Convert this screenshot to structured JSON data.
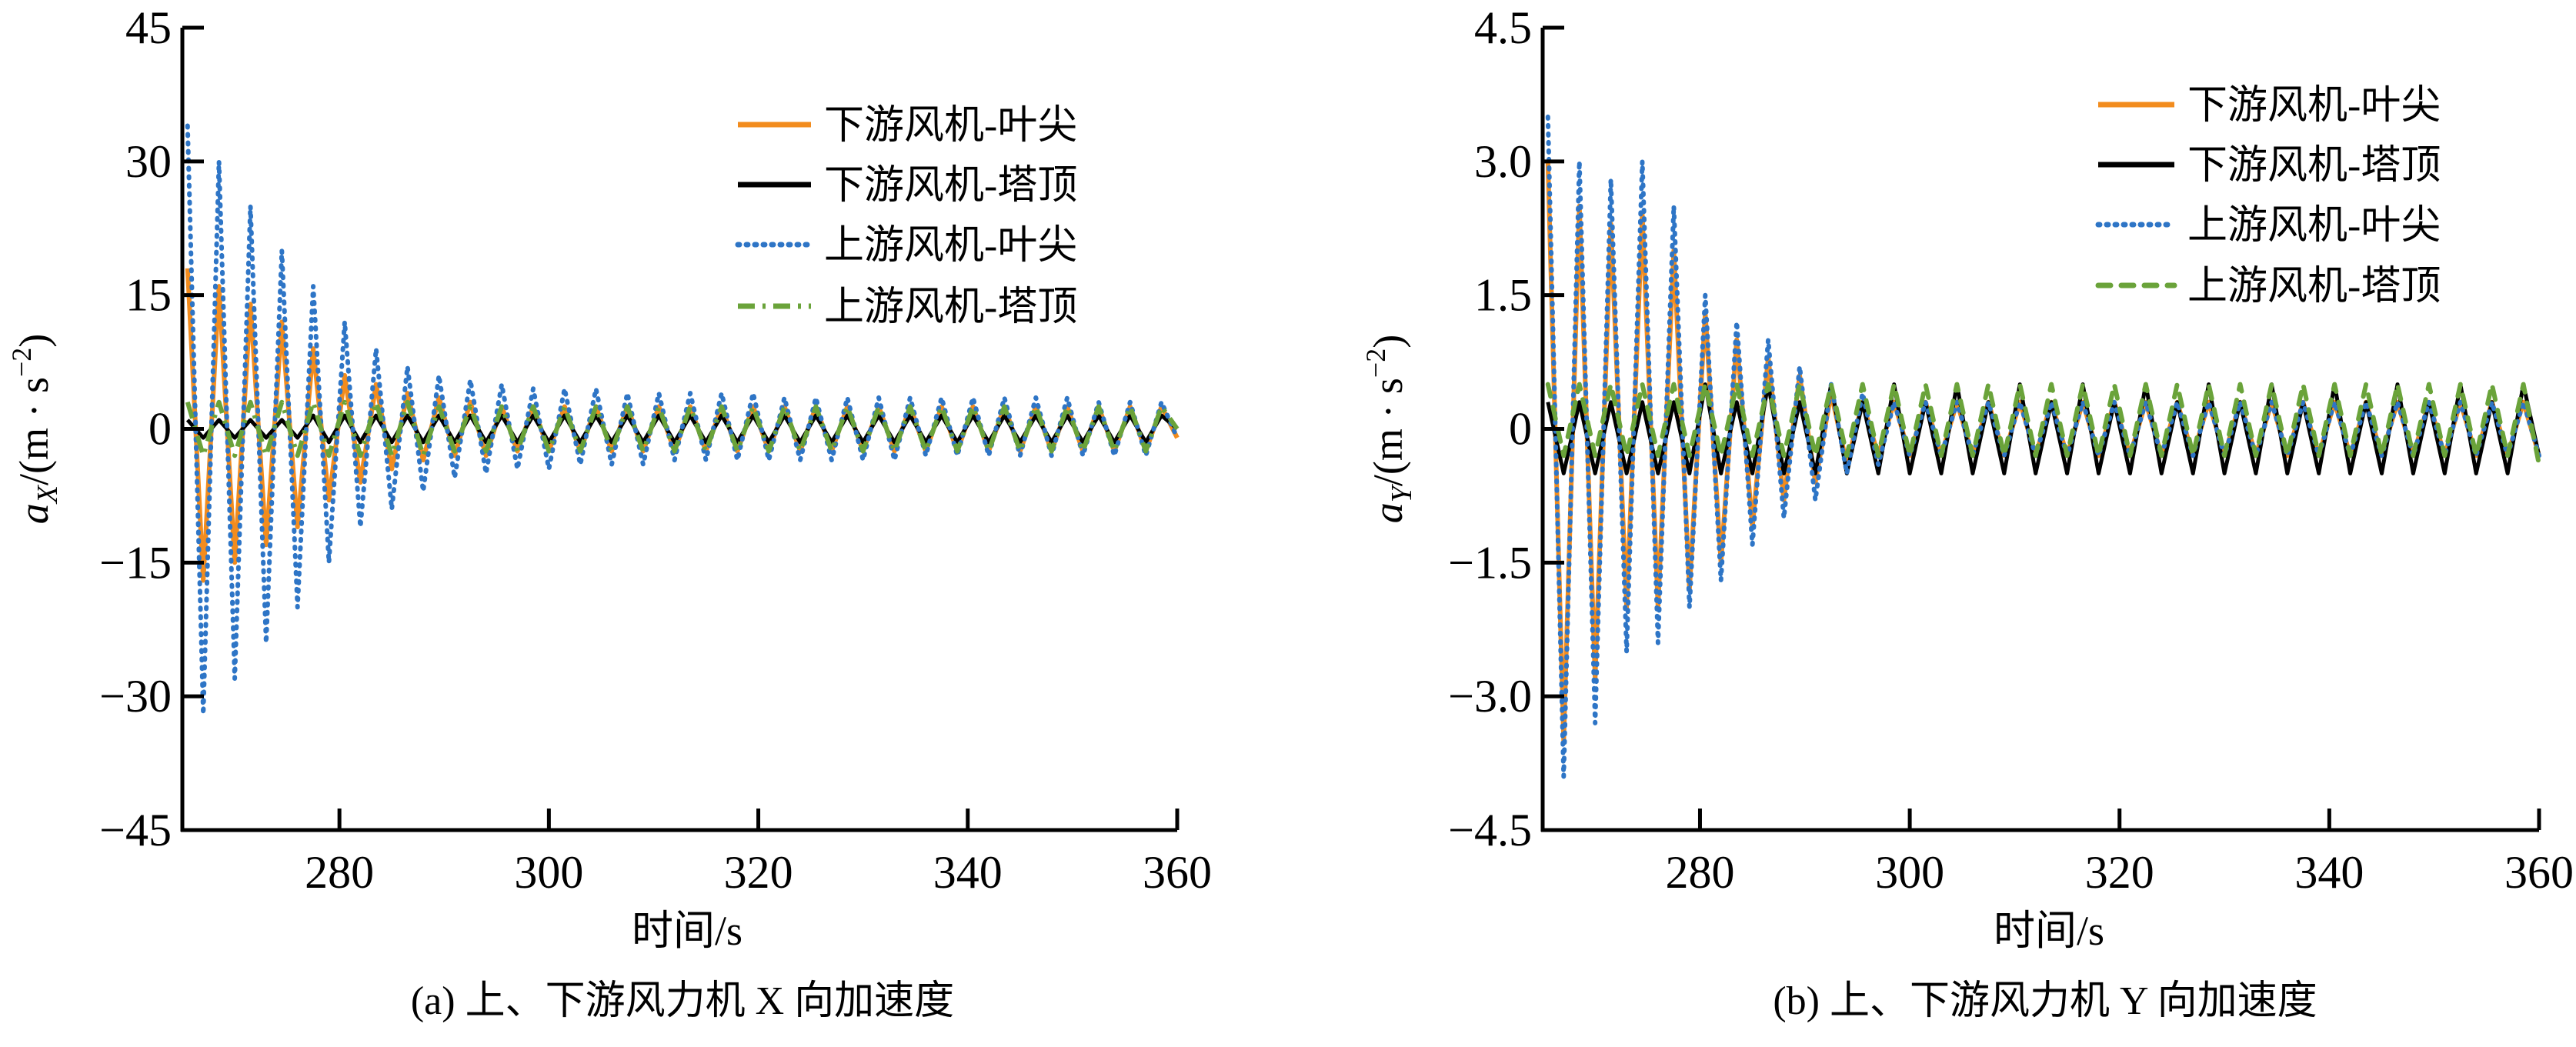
{
  "chart_data": [
    {
      "type": "line",
      "caption": "(a)  上、下游风力机 X 向加速度",
      "xlabel": "时间/s",
      "ylabel": {
        "var": "a",
        "sub": "X",
        "unit": "/(m · s",
        "exp": "−2",
        "close": ")"
      },
      "xlim": [
        265,
        360
      ],
      "ylim": [
        -45,
        45
      ],
      "xticks": [
        "280",
        "300",
        "320",
        "340",
        "360"
      ],
      "xtick_values": [
        280,
        300,
        320,
        340,
        360
      ],
      "yticks": [
        "45",
        "30",
        "15",
        "0",
        "−15",
        "−30",
        "−45"
      ],
      "ytick_values": [
        45,
        30,
        15,
        0,
        -15,
        -30,
        -45
      ],
      "grid": false,
      "legend_position": "top-right",
      "x_start": 265.5,
      "x_step": 1.5,
      "series": [
        {
          "name": "下游风机-叶尖",
          "color": "#F28C1E",
          "style": "solid",
          "values": [
            18,
            -17,
            16,
            -15,
            14,
            -13,
            12,
            -11,
            9,
            -8,
            6,
            -6,
            5,
            -4.5,
            4,
            -3.5,
            3.5,
            -3,
            3,
            -3,
            2.5,
            -2.5,
            2.5,
            -2.5,
            2.5,
            -2.5,
            2.5,
            -2.5,
            2.5,
            -2.5,
            2.5,
            -2.5,
            2.5,
            -2.5,
            2.5,
            -2.5,
            2.5,
            -2.5,
            2.5,
            -2.5,
            2.5,
            -2.5,
            2.5,
            -2.5,
            2.5,
            -2.5,
            2.5,
            -2.5,
            2.5,
            -2.5,
            2.5,
            -2.5,
            2.5,
            -2.5,
            2.5,
            -2.5,
            2.5,
            -2.5,
            2.5,
            -2.5,
            2.5,
            -2.5,
            2.5,
            -1
          ]
        },
        {
          "name": "下游风机-塔顶",
          "color": "#000000",
          "style": "solid",
          "values": [
            1,
            -1,
            1,
            -1,
            1,
            -1,
            1,
            -1,
            1.5,
            -1.5,
            1.5,
            -1.5,
            1.5,
            -1.5,
            1.5,
            -1.5,
            1.5,
            -1.5,
            1.5,
            -1.5,
            1.5,
            -1.5,
            1.5,
            -1.5,
            1.5,
            -1.5,
            1.5,
            -1.5,
            1.5,
            -1.5,
            1.5,
            -1.5,
            1.5,
            -1.5,
            1.5,
            -1.5,
            1.5,
            -1.5,
            1.5,
            -1.5,
            1.5,
            -1.5,
            1.5,
            -1.5,
            1.5,
            -1.5,
            1.5,
            -1.5,
            1.5,
            -1.5,
            1.5,
            -1.5,
            1.5,
            -1.5,
            1.5,
            -1.5,
            1.5,
            -1.5,
            1.5,
            -1.5,
            1.5,
            -1.5,
            1.5,
            0
          ]
        },
        {
          "name": "上游风机-叶尖",
          "color": "#2E75C6",
          "style": "dotted",
          "values": [
            34,
            -32,
            30,
            -28,
            25,
            -24,
            20,
            -20,
            16,
            -15,
            12,
            -11,
            9,
            -9,
            7,
            -7,
            6,
            -5.5,
            5.5,
            -5,
            5,
            -4.5,
            4.5,
            -4.5,
            4.5,
            -4,
            4.5,
            -4,
            4,
            -4,
            4,
            -3.5,
            4,
            -3.5,
            4,
            -3.5,
            4,
            -3.5,
            3.5,
            -3.5,
            3.5,
            -3.5,
            3.5,
            -3.5,
            3.5,
            -3.5,
            3.5,
            -3,
            3.5,
            -3,
            3.5,
            -3,
            3.5,
            -3,
            3.5,
            -3,
            3.5,
            -3,
            3,
            -3,
            3,
            -3,
            3,
            -1
          ]
        },
        {
          "name": "上游风机-塔顶",
          "color": "#6AA33A",
          "style": "dashdot",
          "values": [
            3,
            -3,
            3,
            -3,
            3,
            -3,
            3,
            -3,
            3,
            -3,
            3,
            -3,
            3,
            -3,
            3,
            -3,
            2.5,
            -2.5,
            2.5,
            -2.5,
            2.5,
            -2.5,
            2.5,
            -2.5,
            2.5,
            -2.5,
            2.5,
            -2.5,
            2.5,
            -2.5,
            2.5,
            -2.5,
            2.5,
            -2.5,
            2.5,
            -2.5,
            2.5,
            -2.5,
            2.5,
            -2.5,
            2.5,
            -2.5,
            2.5,
            -2.5,
            2.5,
            -2.5,
            2.5,
            -2.5,
            2.5,
            -2.5,
            2.5,
            -2.5,
            2.5,
            -2.5,
            2.5,
            -2.5,
            2.5,
            -2.5,
            2.5,
            -2.5,
            2.5,
            -2.5,
            2.5,
            0
          ]
        }
      ]
    },
    {
      "type": "line",
      "caption": "(b)  上、下游风力机 Y 向加速度",
      "xlabel": "时间/s",
      "ylabel": {
        "var": "a",
        "sub": "Y",
        "unit": "/(m · s",
        "exp": "−2",
        "close": ")"
      },
      "xlim": [
        265,
        360
      ],
      "ylim": [
        -4.5,
        4.5
      ],
      "xticks": [
        "280",
        "300",
        "320",
        "340",
        "360"
      ],
      "xtick_values": [
        280,
        300,
        320,
        340,
        360
      ],
      "yticks": [
        "4.5",
        "3.0",
        "1.5",
        "0",
        "−1.5",
        "−3.0",
        "−4.5"
      ],
      "ytick_values": [
        4.5,
        3,
        1.5,
        0,
        -1.5,
        -3,
        -4.5
      ],
      "grid": false,
      "legend_position": "top-right",
      "x_start": 265.5,
      "x_step": 1.5,
      "series": [
        {
          "name": "下游风机-叶尖",
          "color": "#F28C1E",
          "style": "solid",
          "values": [
            3,
            -3.5,
            2.5,
            -2.8,
            2.3,
            -2,
            2.4,
            -2,
            2,
            -1.8,
            1.3,
            -1.5,
            1,
            -1.1,
            0.8,
            -0.8,
            0.6,
            -0.6,
            0.4,
            -0.4,
            0.3,
            -0.3,
            0.3,
            -0.3,
            0.3,
            -0.3,
            0.3,
            -0.3,
            0.3,
            -0.3,
            0.3,
            -0.3,
            0.3,
            -0.3,
            0.3,
            -0.3,
            0.3,
            -0.3,
            0.3,
            -0.3,
            0.3,
            -0.3,
            0.3,
            -0.3,
            0.3,
            -0.3,
            0.3,
            -0.3,
            0.3,
            -0.3,
            0.3,
            -0.3,
            0.3,
            -0.3,
            0.3,
            -0.3,
            0.3,
            -0.3,
            0.3,
            -0.3,
            0.3,
            -0.3,
            0.3,
            -0.3
          ]
        },
        {
          "name": "下游风机-塔顶",
          "color": "#000000",
          "style": "solid",
          "values": [
            0.3,
            -0.5,
            0.3,
            -0.5,
            0.3,
            -0.5,
            0.3,
            -0.5,
            0.3,
            -0.5,
            0.5,
            -0.5,
            0.3,
            -0.5,
            0.5,
            -0.5,
            0.3,
            -0.5,
            0.5,
            -0.5,
            0.3,
            -0.5,
            0.5,
            -0.5,
            0.3,
            -0.5,
            0.5,
            -0.5,
            0.3,
            -0.5,
            0.5,
            -0.5,
            0.3,
            -0.5,
            0.5,
            -0.5,
            0.3,
            -0.5,
            0.5,
            -0.5,
            0.3,
            -0.5,
            0.5,
            -0.5,
            0.3,
            -0.5,
            0.5,
            -0.5,
            0.3,
            -0.5,
            0.5,
            -0.5,
            0.3,
            -0.5,
            0.5,
            -0.5,
            0.3,
            -0.5,
            0.5,
            -0.5,
            0.3,
            -0.5,
            0.5,
            -0.3
          ]
        },
        {
          "name": "上游风机-叶尖",
          "color": "#2E75C6",
          "style": "dotted",
          "values": [
            3.5,
            -3.9,
            3,
            -3.3,
            2.8,
            -2.5,
            3,
            -2.4,
            2.5,
            -2,
            1.5,
            -1.7,
            1.2,
            -1.3,
            1,
            -1,
            0.7,
            -0.8,
            0.5,
            -0.5,
            0.4,
            -0.4,
            0.3,
            -0.3,
            0.3,
            -0.3,
            0.3,
            -0.3,
            0.3,
            -0.3,
            0.3,
            -0.3,
            0.3,
            -0.3,
            0.3,
            -0.3,
            0.3,
            -0.3,
            0.3,
            -0.3,
            0.3,
            -0.3,
            0.3,
            -0.3,
            0.3,
            -0.3,
            0.3,
            -0.3,
            0.3,
            -0.3,
            0.3,
            -0.3,
            0.3,
            -0.3,
            0.3,
            -0.3,
            0.3,
            -0.3,
            0.3,
            -0.3,
            0.3,
            -0.3,
            0.3,
            -0.3
          ]
        },
        {
          "name": "上游风机-塔顶",
          "color": "#6AA33A",
          "style": "dashed",
          "values": [
            0.5,
            -0.3,
            0.5,
            -0.3,
            0.5,
            -0.3,
            0.5,
            -0.3,
            0.5,
            -0.3,
            0.5,
            -0.3,
            0.5,
            -0.3,
            0.5,
            -0.3,
            0.5,
            -0.3,
            0.5,
            -0.3,
            0.5,
            -0.3,
            0.5,
            -0.3,
            0.5,
            -0.3,
            0.5,
            -0.3,
            0.5,
            -0.3,
            0.5,
            -0.3,
            0.5,
            -0.3,
            0.5,
            -0.3,
            0.5,
            -0.3,
            0.5,
            -0.3,
            0.5,
            -0.3,
            0.5,
            -0.3,
            0.5,
            -0.3,
            0.5,
            -0.3,
            0.5,
            -0.3,
            0.5,
            -0.3,
            0.5,
            -0.3,
            0.5,
            -0.3,
            0.5,
            -0.3,
            0.5,
            -0.3,
            0.5,
            -0.3,
            0.5,
            -0.4
          ]
        }
      ]
    }
  ]
}
